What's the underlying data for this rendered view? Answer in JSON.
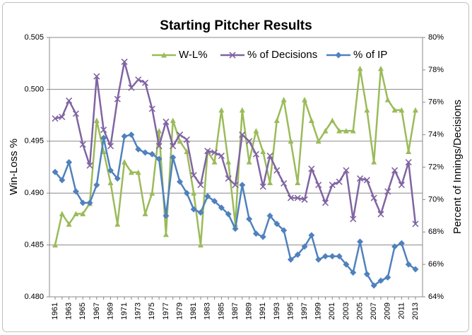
{
  "chart_data": {
    "type": "line",
    "title": "Starting Pitcher Results",
    "y_label": "Win-Loss %",
    "y2_label": "Percent of Innings/Decisions",
    "categories": [
      "1961",
      null,
      "1963",
      null,
      "1965",
      null,
      "1967",
      null,
      "1969",
      null,
      "1971",
      null,
      "1973",
      null,
      "1975",
      null,
      "1977",
      null,
      "1979",
      null,
      "1981",
      null,
      "1983",
      null,
      "1985",
      null,
      "1987",
      null,
      "1989",
      null,
      "1991",
      null,
      "1993",
      null,
      "1995",
      null,
      "1997",
      null,
      "1999",
      null,
      "2001",
      null,
      "2003",
      null,
      "2005",
      null,
      "2007",
      null,
      "2009",
      null,
      "2011",
      null,
      "2013"
    ],
    "ylim": [
      0.48,
      0.505
    ],
    "yticks": [
      {
        "value": 0.48,
        "label": "0.480"
      },
      {
        "value": 0.485,
        "label": "0.485"
      },
      {
        "value": 0.49,
        "label": "0.490"
      },
      {
        "value": 0.495,
        "label": "0.495"
      },
      {
        "value": 0.5,
        "label": "0.500"
      },
      {
        "value": 0.505,
        "label": "0.505"
      }
    ],
    "y2lim": [
      64,
      80
    ],
    "y2ticks": [
      {
        "value": 64,
        "label": "64%"
      },
      {
        "value": 66,
        "label": "66%"
      },
      {
        "value": 68,
        "label": "68%"
      },
      {
        "value": 70,
        "label": "70%"
      },
      {
        "value": 72,
        "label": "72%"
      },
      {
        "value": 74,
        "label": "74%"
      },
      {
        "value": 76,
        "label": "76%"
      },
      {
        "value": 78,
        "label": "78%"
      },
      {
        "value": 80,
        "label": "80%"
      }
    ],
    "grid": true,
    "legend": "top",
    "series": [
      {
        "name": "W-L%",
        "color": "#9bbb59",
        "marker": "triangle",
        "values": [
          0.485,
          0.488,
          0.487,
          0.488,
          0.488,
          0.489,
          0.497,
          0.494,
          0.491,
          0.487,
          0.493,
          0.492,
          0.492,
          0.488,
          0.49,
          0.496,
          0.486,
          0.497,
          0.495,
          0.494,
          0.49,
          0.485,
          0.494,
          0.493,
          0.498,
          0.493,
          0.487,
          0.498,
          0.493,
          0.496,
          0.494,
          0.491,
          0.497,
          0.499,
          0.495,
          0.491,
          0.499,
          0.497,
          0.495,
          0.496,
          0.497,
          0.496,
          0.496,
          0.496,
          0.502,
          0.498,
          0.493,
          0.502,
          0.499,
          0.498,
          0.498,
          0.494,
          0.498
        ]
      },
      {
        "name": "% of Decisions",
        "color": "#8064a2",
        "marker": "x",
        "axis": "y2",
        "values": [
          75.0,
          75.1,
          76.1,
          75.3,
          73.4,
          72.1,
          77.6,
          74.3,
          73.3,
          76.2,
          78.5,
          76.9,
          77.4,
          77.2,
          75.6,
          73.3,
          74.8,
          73.3,
          74.0,
          73.7,
          71.5,
          70.9,
          73.0,
          72.9,
          72.7,
          71.3,
          70.9,
          74.0,
          73.6,
          72.8,
          70.8,
          72.7,
          71.8,
          71.0,
          70.1,
          70.1,
          70.0,
          71.9,
          70.9,
          69.8,
          70.9,
          71.1,
          71.8,
          68.8,
          71.3,
          71.2,
          70.1,
          69.1,
          70.5,
          71.8,
          70.9,
          72.3,
          68.5
        ]
      },
      {
        "name": "% of IP",
        "color": "#4f81bd",
        "marker": "diamond",
        "axis": "y2",
        "values": [
          71.7,
          71.2,
          72.3,
          70.5,
          69.8,
          69.8,
          70.9,
          73.8,
          71.8,
          71.3,
          73.9,
          74.0,
          73.1,
          72.9,
          72.8,
          72.5,
          69.0,
          72.6,
          71.1,
          70.4,
          69.4,
          69.2,
          70.2,
          69.9,
          69.5,
          69.1,
          68.2,
          70.9,
          68.8,
          67.9,
          67.7,
          69.0,
          68.5,
          68.1,
          66.3,
          66.6,
          67.1,
          67.8,
          66.3,
          66.5,
          66.5,
          66.5,
          66.0,
          65.5,
          67.4,
          65.4,
          64.7,
          65.0,
          65.2,
          67.1,
          67.3,
          66.0,
          65.7
        ]
      }
    ]
  }
}
